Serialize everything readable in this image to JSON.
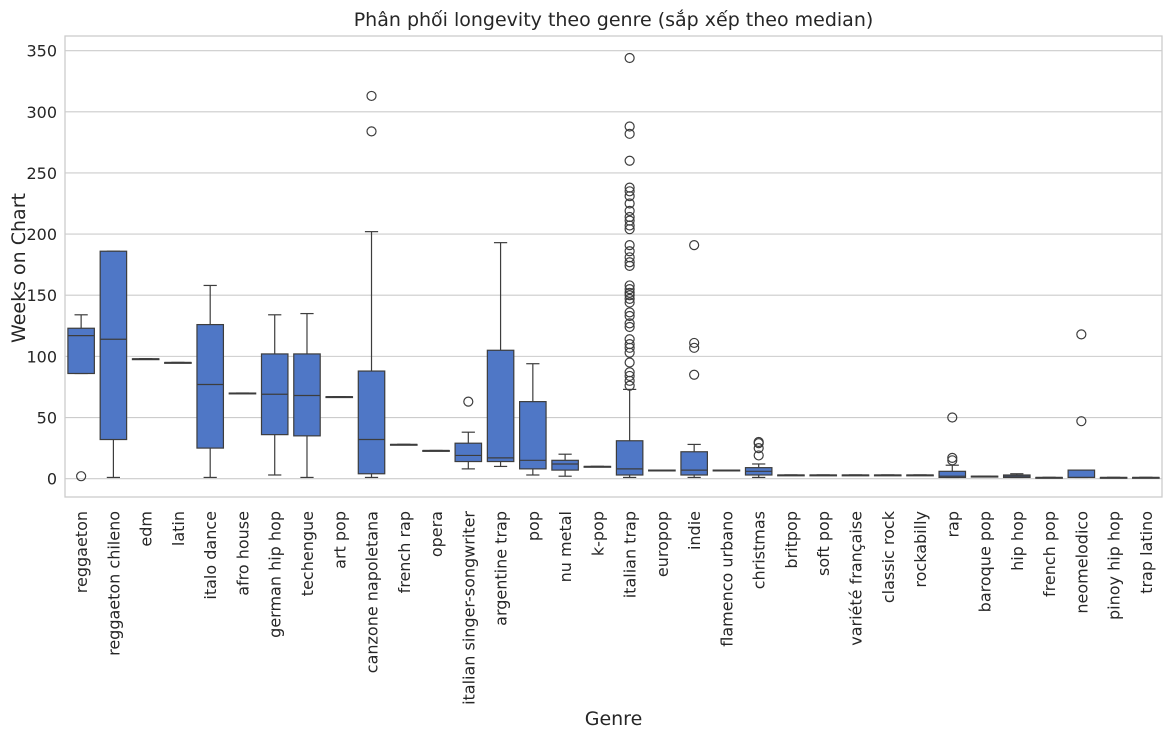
{
  "chart_data": {
    "type": "box",
    "title": "Phân phối longevity theo genre (sắp xếp theo median)",
    "xlabel": "Genre",
    "ylabel": "Weeks on Chart",
    "ylim": [
      -15,
      362
    ],
    "yticks": [
      0,
      50,
      100,
      150,
      200,
      250,
      300,
      350
    ],
    "grid": "horizontal",
    "box_color": "#4f77c6",
    "categories": [
      {
        "name": "reggaeton",
        "q1": 86,
        "median": 117,
        "q3": 123,
        "whislo": 86,
        "whishi": 134,
        "fliers": [
          2
        ]
      },
      {
        "name": "reggaeton chileno",
        "q1": 32,
        "median": 114,
        "q3": 186,
        "whislo": 1,
        "whishi": 186,
        "fliers": []
      },
      {
        "name": "edm",
        "q1": 98,
        "median": 98,
        "q3": 98,
        "whislo": 98,
        "whishi": 98,
        "fliers": []
      },
      {
        "name": "latin",
        "q1": 95,
        "median": 95,
        "q3": 95,
        "whislo": 95,
        "whishi": 95,
        "fliers": []
      },
      {
        "name": "italo dance",
        "q1": 25,
        "median": 77,
        "q3": 126,
        "whislo": 1,
        "whishi": 158,
        "fliers": []
      },
      {
        "name": "afro house",
        "q1": 70,
        "median": 70,
        "q3": 70,
        "whislo": 70,
        "whishi": 70,
        "fliers": []
      },
      {
        "name": "german hip hop",
        "q1": 36,
        "median": 69,
        "q3": 102,
        "whislo": 3,
        "whishi": 134,
        "fliers": []
      },
      {
        "name": "techengue",
        "q1": 35,
        "median": 68,
        "q3": 102,
        "whislo": 1,
        "whishi": 135,
        "fliers": []
      },
      {
        "name": "art pop",
        "q1": 67,
        "median": 67,
        "q3": 67,
        "whislo": 67,
        "whishi": 67,
        "fliers": []
      },
      {
        "name": "canzone napoletana",
        "q1": 4,
        "median": 32,
        "q3": 88,
        "whislo": 1,
        "whishi": 202,
        "fliers": [
          284,
          313
        ]
      },
      {
        "name": "french rap",
        "q1": 28,
        "median": 28,
        "q3": 28,
        "whislo": 28,
        "whishi": 28,
        "fliers": []
      },
      {
        "name": "opera",
        "q1": 23,
        "median": 23,
        "q3": 23,
        "whislo": 23,
        "whishi": 23,
        "fliers": []
      },
      {
        "name": "italian singer-songwriter",
        "q1": 14,
        "median": 19,
        "q3": 29,
        "whislo": 8,
        "whishi": 38,
        "fliers": [
          63
        ]
      },
      {
        "name": "argentine trap",
        "q1": 14,
        "median": 17,
        "q3": 105,
        "whislo": 10,
        "whishi": 193,
        "fliers": []
      },
      {
        "name": "pop",
        "q1": 8,
        "median": 15,
        "q3": 63,
        "whislo": 3,
        "whishi": 94,
        "fliers": []
      },
      {
        "name": "nu metal",
        "q1": 7,
        "median": 12,
        "q3": 15,
        "whislo": 2,
        "whishi": 20,
        "fliers": []
      },
      {
        "name": "k-pop",
        "q1": 10,
        "median": 10,
        "q3": 10,
        "whislo": 10,
        "whishi": 10,
        "fliers": []
      },
      {
        "name": "italian trap",
        "q1": 3,
        "median": 8,
        "q3": 31,
        "whislo": 1,
        "whishi": 73,
        "fliers": [
          76,
          80,
          84,
          87,
          95,
          103,
          107,
          110,
          114,
          124,
          127,
          133,
          136,
          144,
          147,
          150,
          152,
          155,
          158,
          174,
          177,
          181,
          186,
          191,
          204,
          207,
          211,
          214,
          219,
          225,
          231,
          235,
          238,
          260,
          282,
          288,
          344
        ]
      },
      {
        "name": "europop",
        "q1": 7,
        "median": 7,
        "q3": 7,
        "whislo": 7,
        "whishi": 7,
        "fliers": []
      },
      {
        "name": "indie",
        "q1": 3,
        "median": 7,
        "q3": 22,
        "whislo": 1,
        "whishi": 28,
        "fliers": [
          85,
          107,
          111,
          191
        ]
      },
      {
        "name": "flamenco urbano",
        "q1": 7,
        "median": 7,
        "q3": 7,
        "whislo": 7,
        "whishi": 7,
        "fliers": []
      },
      {
        "name": "christmas",
        "q1": 3,
        "median": 6,
        "q3": 9,
        "whislo": 1,
        "whishi": 12,
        "fliers": [
          19,
          25,
          29,
          30
        ]
      },
      {
        "name": "britpop",
        "q1": 3,
        "median": 3,
        "q3": 3,
        "whislo": 3,
        "whishi": 3,
        "fliers": []
      },
      {
        "name": "soft pop",
        "q1": 3,
        "median": 3,
        "q3": 3,
        "whislo": 3,
        "whishi": 3,
        "fliers": []
      },
      {
        "name": "variété française",
        "q1": 3,
        "median": 3,
        "q3": 3,
        "whislo": 3,
        "whishi": 3,
        "fliers": []
      },
      {
        "name": "classic rock",
        "q1": 3,
        "median": 3,
        "q3": 3,
        "whislo": 3,
        "whishi": 3,
        "fliers": []
      },
      {
        "name": "rockabilly",
        "q1": 3,
        "median": 3,
        "q3": 3,
        "whislo": 3,
        "whishi": 3,
        "fliers": []
      },
      {
        "name": "rap",
        "q1": 1,
        "median": 2,
        "q3": 6,
        "whislo": 1,
        "whishi": 11,
        "fliers": [
          15,
          17,
          50
        ]
      },
      {
        "name": "baroque pop",
        "q1": 2,
        "median": 2,
        "q3": 2,
        "whislo": 2,
        "whishi": 2,
        "fliers": []
      },
      {
        "name": "hip hop",
        "q1": 1,
        "median": 2,
        "q3": 3,
        "whislo": 1,
        "whishi": 4,
        "fliers": []
      },
      {
        "name": "french pop",
        "q1": 1,
        "median": 1,
        "q3": 1,
        "whislo": 1,
        "whishi": 1,
        "fliers": []
      },
      {
        "name": "neomelodico",
        "q1": 1,
        "median": 1,
        "q3": 7,
        "whislo": 1,
        "whishi": 7,
        "fliers": [
          47,
          118
        ]
      },
      {
        "name": "pinoy hip hop",
        "q1": 1,
        "median": 1,
        "q3": 1,
        "whislo": 1,
        "whishi": 1,
        "fliers": []
      },
      {
        "name": "trap latino",
        "q1": 1,
        "median": 1,
        "q3": 1,
        "whislo": 1,
        "whishi": 1,
        "fliers": []
      }
    ]
  }
}
